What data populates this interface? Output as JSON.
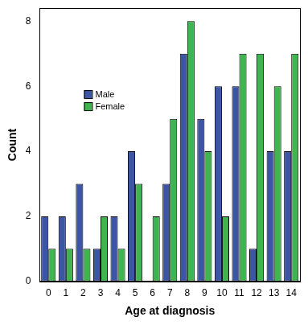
{
  "chart_data": {
    "type": "bar",
    "x_label": "Age at diagnosis",
    "y_label": "Count",
    "categories": [
      0,
      1,
      2,
      3,
      4,
      5,
      6,
      7,
      8,
      9,
      10,
      11,
      12,
      13,
      14
    ],
    "series": [
      {
        "name": "Male",
        "color": "#3d55a5",
        "values": [
          2,
          2,
          3,
          1,
          2,
          4,
          0,
          3,
          7,
          5,
          6,
          6,
          1,
          4,
          4
        ]
      },
      {
        "name": "Female",
        "color": "#3fb550",
        "values": [
          1,
          1,
          1,
          2,
          1,
          3,
          2,
          5,
          8,
          4,
          2,
          7,
          7,
          6,
          7
        ]
      }
    ],
    "ylim": [
      0,
      8.4
    ],
    "yticks": [
      0,
      2,
      4,
      6,
      8
    ],
    "grid": false,
    "legend": "upper left"
  }
}
